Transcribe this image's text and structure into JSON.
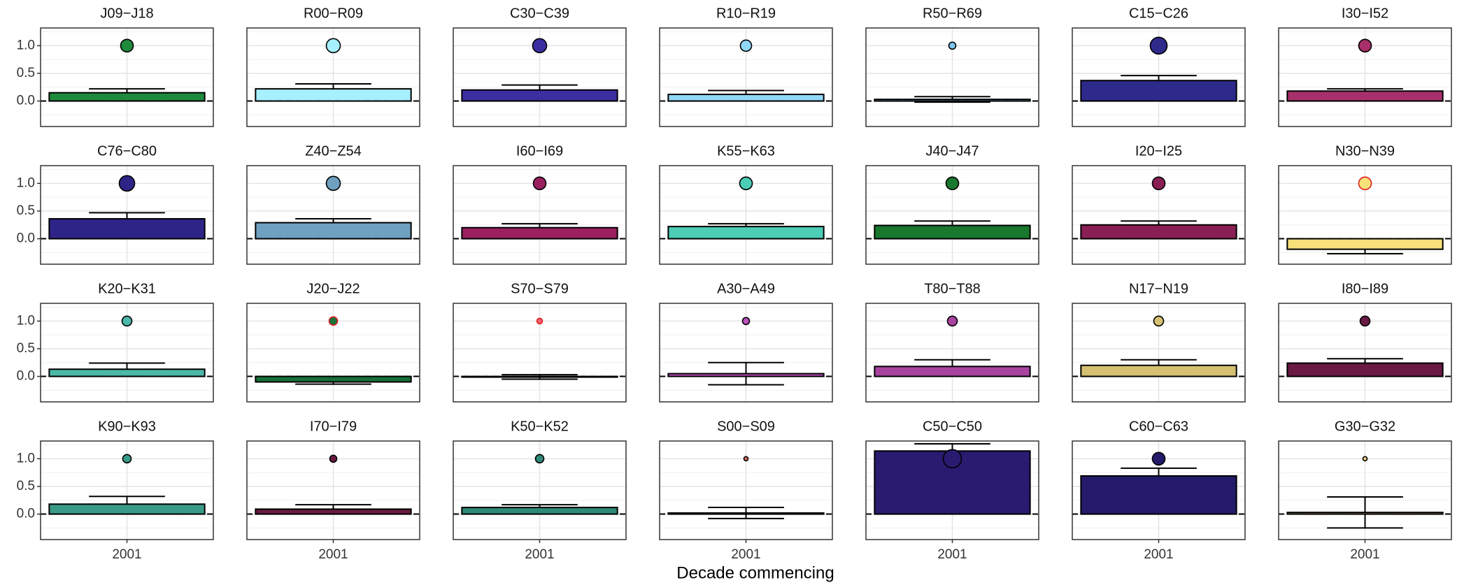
{
  "chart_data": {
    "type": "bar",
    "xlabel": "Decade commencing",
    "categories": [
      "2001"
    ],
    "ylim": [
      -0.46,
      1.32
    ],
    "yticks": [
      {
        "value": 0,
        "label": "0.0"
      },
      {
        "value": 0.5,
        "label": "0.5"
      },
      {
        "value": 1,
        "label": "1.0"
      }
    ],
    "grid": true,
    "facets": [
      {
        "title": "J09−J18",
        "color": "#1f8a3c",
        "values": [
          0.15
        ],
        "errors": [
          0.07
        ],
        "points": [
          1
        ],
        "point_sizes": [
          9
        ]
      },
      {
        "title": "R00−R09",
        "color": "#a6f0ff",
        "values": [
          0.22
        ],
        "errors": [
          0.09
        ],
        "points": [
          1
        ],
        "point_sizes": [
          10
        ]
      },
      {
        "title": "C30−C39",
        "color": "#3b2ea0",
        "values": [
          0.2
        ],
        "errors": [
          0.09
        ],
        "points": [
          1
        ],
        "point_sizes": [
          10
        ]
      },
      {
        "title": "R10−R19",
        "color": "#90d8f8",
        "values": [
          0.12
        ],
        "errors": [
          0.07
        ],
        "points": [
          1
        ],
        "point_sizes": [
          8
        ]
      },
      {
        "title": "R50−R69",
        "color": "#7ec8f0",
        "values": [
          0.03
        ],
        "errors": [
          0.05
        ],
        "points": [
          1
        ],
        "point_sizes": [
          5
        ]
      },
      {
        "title": "C15−C26",
        "color": "#2e2a8c",
        "values": [
          0.37
        ],
        "errors": [
          0.09
        ],
        "points": [
          1
        ],
        "point_sizes": [
          12
        ]
      },
      {
        "title": "I30−I52",
        "color": "#a8306a",
        "values": [
          0.18
        ],
        "errors": [
          0.04
        ],
        "points": [
          1
        ],
        "point_sizes": [
          9
        ]
      },
      {
        "title": "C76−C80",
        "color": "#2e2488",
        "values": [
          0.36
        ],
        "errors": [
          0.11
        ],
        "points": [
          1
        ],
        "point_sizes": [
          11
        ]
      },
      {
        "title": "Z40−Z54",
        "color": "#6fa0bf",
        "values": [
          0.29
        ],
        "errors": [
          0.07
        ],
        "points": [
          1
        ],
        "point_sizes": [
          10
        ]
      },
      {
        "title": "I60−I69",
        "color": "#9a2060",
        "values": [
          0.2
        ],
        "errors": [
          0.07
        ],
        "points": [
          1
        ],
        "point_sizes": [
          9
        ]
      },
      {
        "title": "K55−K63",
        "color": "#4ccdb5",
        "values": [
          0.22
        ],
        "errors": [
          0.05
        ],
        "points": [
          1
        ],
        "point_sizes": [
          9
        ]
      },
      {
        "title": "J40−J47",
        "color": "#18782e",
        "values": [
          0.24
        ],
        "errors": [
          0.08
        ],
        "points": [
          1
        ],
        "point_sizes": [
          9
        ]
      },
      {
        "title": "I20−I25",
        "color": "#8a1f55",
        "values": [
          0.25
        ],
        "errors": [
          0.07
        ],
        "points": [
          1
        ],
        "point_sizes": [
          9
        ]
      },
      {
        "title": "N30−N39",
        "color": "#f8e07a",
        "edge": "#e02020",
        "values": [
          -0.19
        ],
        "errors": [
          0.08
        ],
        "points": [
          1
        ],
        "point_sizes": [
          9
        ]
      },
      {
        "title": "K20−K31",
        "color": "#4cb8a8",
        "values": [
          0.13
        ],
        "errors": [
          0.11
        ],
        "points": [
          1
        ],
        "point_sizes": [
          7
        ]
      },
      {
        "title": "J20−J22",
        "color": "#18703a",
        "edge": "#e02020",
        "values": [
          -0.1
        ],
        "errors": [
          0.04
        ],
        "points": [
          1
        ],
        "point_sizes": [
          6
        ]
      },
      {
        "title": "S70−S79",
        "color": "#f06070",
        "edge": "#e02020",
        "values": [
          -0.01
        ],
        "errors": [
          0.04
        ],
        "points": [
          1
        ],
        "point_sizes": [
          4
        ]
      },
      {
        "title": "A30−A49",
        "color": "#c050c0",
        "values": [
          0.05
        ],
        "errors": [
          0.2
        ],
        "points": [
          1
        ],
        "point_sizes": [
          5
        ]
      },
      {
        "title": "T80−T88",
        "color": "#a844a0",
        "values": [
          0.18
        ],
        "errors": [
          0.12
        ],
        "points": [
          1
        ],
        "point_sizes": [
          7
        ]
      },
      {
        "title": "N17−N19",
        "color": "#d4c070",
        "values": [
          0.2
        ],
        "errors": [
          0.1
        ],
        "points": [
          1
        ],
        "point_sizes": [
          7
        ]
      },
      {
        "title": "I80−I89",
        "color": "#6a1a45",
        "values": [
          0.24
        ],
        "errors": [
          0.08
        ],
        "points": [
          1
        ],
        "point_sizes": [
          7
        ]
      },
      {
        "title": "K90−K93",
        "color": "#3a9a88",
        "values": [
          0.18
        ],
        "errors": [
          0.14
        ],
        "points": [
          1
        ],
        "point_sizes": [
          6
        ]
      },
      {
        "title": "I70−I79",
        "color": "#6a1a40",
        "values": [
          0.09
        ],
        "errors": [
          0.08
        ],
        "points": [
          1
        ],
        "point_sizes": [
          5
        ]
      },
      {
        "title": "K50−K52",
        "color": "#2e8a78",
        "values": [
          0.12
        ],
        "errors": [
          0.05
        ],
        "points": [
          1
        ],
        "point_sizes": [
          6
        ]
      },
      {
        "title": "S00−S09",
        "color": "#e06a5a",
        "values": [
          0.02
        ],
        "errors": [
          0.1
        ],
        "points": [
          1
        ],
        "point_sizes": [
          3
        ]
      },
      {
        "title": "C50−C50",
        "color": "#2a1a70",
        "values": [
          1.14
        ],
        "errors": [
          0.13
        ],
        "points": [
          1
        ],
        "point_sizes": [
          13
        ]
      },
      {
        "title": "C60−C63",
        "color": "#241a6a",
        "values": [
          0.69
        ],
        "errors": [
          0.14
        ],
        "points": [
          1
        ],
        "point_sizes": [
          9
        ]
      },
      {
        "title": "G30−G32",
        "color": "#f0d080",
        "values": [
          0.03
        ],
        "errors": [
          0.28
        ],
        "points": [
          1
        ],
        "point_sizes": [
          3
        ]
      }
    ]
  }
}
